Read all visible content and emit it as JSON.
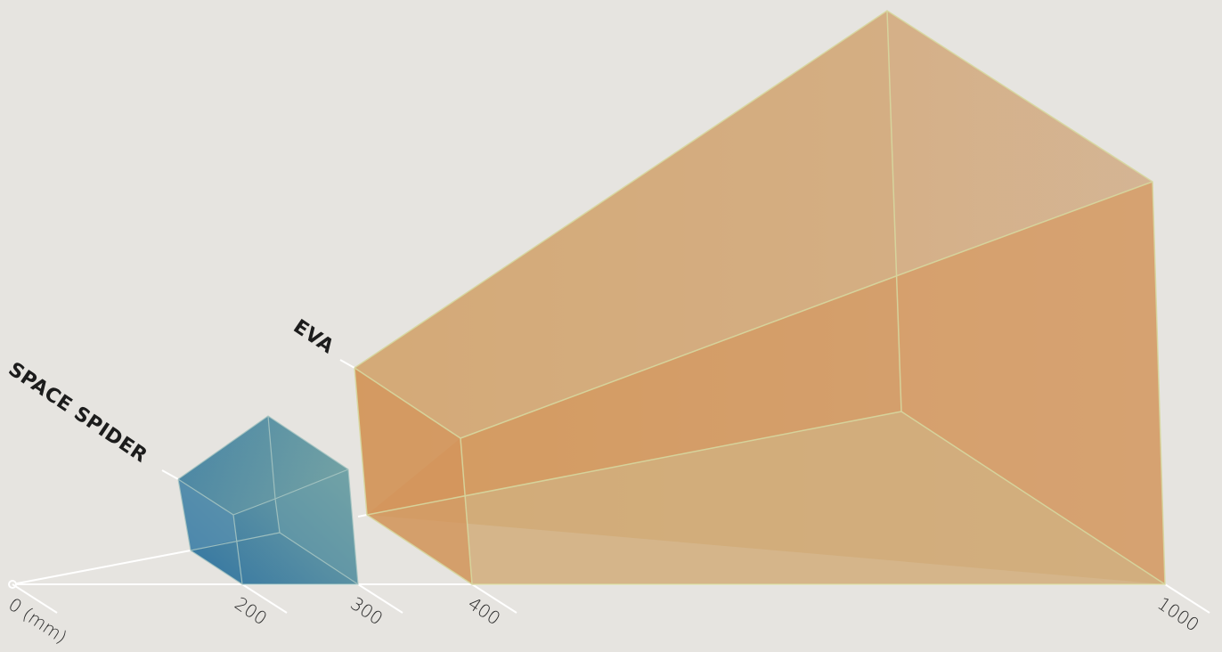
{
  "axis": {
    "origin_label": "0 (mm)",
    "ticks": [
      "200",
      "300",
      "400",
      "1000"
    ]
  },
  "objects": [
    {
      "name": "SPACE SPIDER",
      "color_from": "#2f72a2",
      "color_to": "#86b0a4"
    },
    {
      "name": "EVA",
      "color_from": "#d39a55",
      "color_to": "#d6a87e"
    }
  ]
}
